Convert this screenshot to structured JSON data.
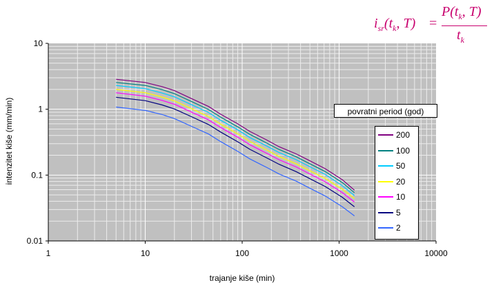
{
  "formula": {
    "lhs_main": "i",
    "lhs_sub": "sr",
    "lhs_args": "(t",
    "lhs_args_sub": "k",
    "lhs_args_end": ", T)",
    "eq": "=",
    "num_main": "P(t",
    "num_sub": "k",
    "num_end": ", T)",
    "den_main": "t",
    "den_sub": "k"
  },
  "chart_data": {
    "type": "line",
    "title": "",
    "xlabel": "trajanje kiše (min)",
    "ylabel": "intenzitet kiše (mm/min)",
    "x_scale": "log",
    "y_scale": "log",
    "xlim": [
      1,
      10000
    ],
    "ylim": [
      0.01,
      10
    ],
    "x_ticks": [
      "1",
      "10",
      "100",
      "1000",
      "10000"
    ],
    "y_ticks": [
      "0.01",
      "0.1",
      "1",
      "10"
    ],
    "grid": true,
    "legend_title": "povratni period (god)",
    "legend_position": "right",
    "x": [
      5,
      10,
      15,
      20,
      30,
      45,
      60,
      90,
      120,
      180,
      240,
      360,
      480,
      720,
      1080,
      1440
    ],
    "series": [
      {
        "name": "200",
        "color": "#800080",
        "values": [
          2.85,
          2.55,
          2.2,
          1.92,
          1.45,
          1.1,
          0.84,
          0.6,
          0.46,
          0.34,
          0.27,
          0.21,
          0.17,
          0.125,
          0.085,
          0.059
        ]
      },
      {
        "name": "100",
        "color": "#008080",
        "values": [
          2.55,
          2.3,
          1.98,
          1.72,
          1.31,
          0.99,
          0.76,
          0.54,
          0.415,
          0.305,
          0.245,
          0.19,
          0.153,
          0.113,
          0.077,
          0.054
        ]
      },
      {
        "name": "50",
        "color": "#00ccff",
        "values": [
          2.3,
          2.05,
          1.76,
          1.54,
          1.17,
          0.89,
          0.68,
          0.485,
          0.372,
          0.275,
          0.22,
          0.171,
          0.138,
          0.102,
          0.069,
          0.049
        ]
      },
      {
        "name": "20",
        "color": "#ffff00",
        "values": [
          2.0,
          1.78,
          1.53,
          1.34,
          1.02,
          0.775,
          0.595,
          0.423,
          0.325,
          0.24,
          0.192,
          0.149,
          0.12,
          0.089,
          0.061,
          0.044
        ]
      },
      {
        "name": "10",
        "color": "#ff00ff",
        "values": [
          1.78,
          1.58,
          1.36,
          1.19,
          0.905,
          0.688,
          0.528,
          0.376,
          0.289,
          0.213,
          0.171,
          0.133,
          0.107,
          0.079,
          0.054,
          0.039
        ]
      },
      {
        "name": "5",
        "color": "#000080",
        "values": [
          1.52,
          1.35,
          1.16,
          1.01,
          0.77,
          0.585,
          0.45,
          0.32,
          0.246,
          0.182,
          0.146,
          0.113,
          0.091,
          0.067,
          0.046,
          0.033
        ]
      },
      {
        "name": "2",
        "color": "#3366ff",
        "values": [
          1.08,
          0.96,
          0.83,
          0.72,
          0.55,
          0.42,
          0.322,
          0.229,
          0.176,
          0.13,
          0.104,
          0.081,
          0.065,
          0.048,
          0.033,
          0.024
        ]
      }
    ]
  }
}
